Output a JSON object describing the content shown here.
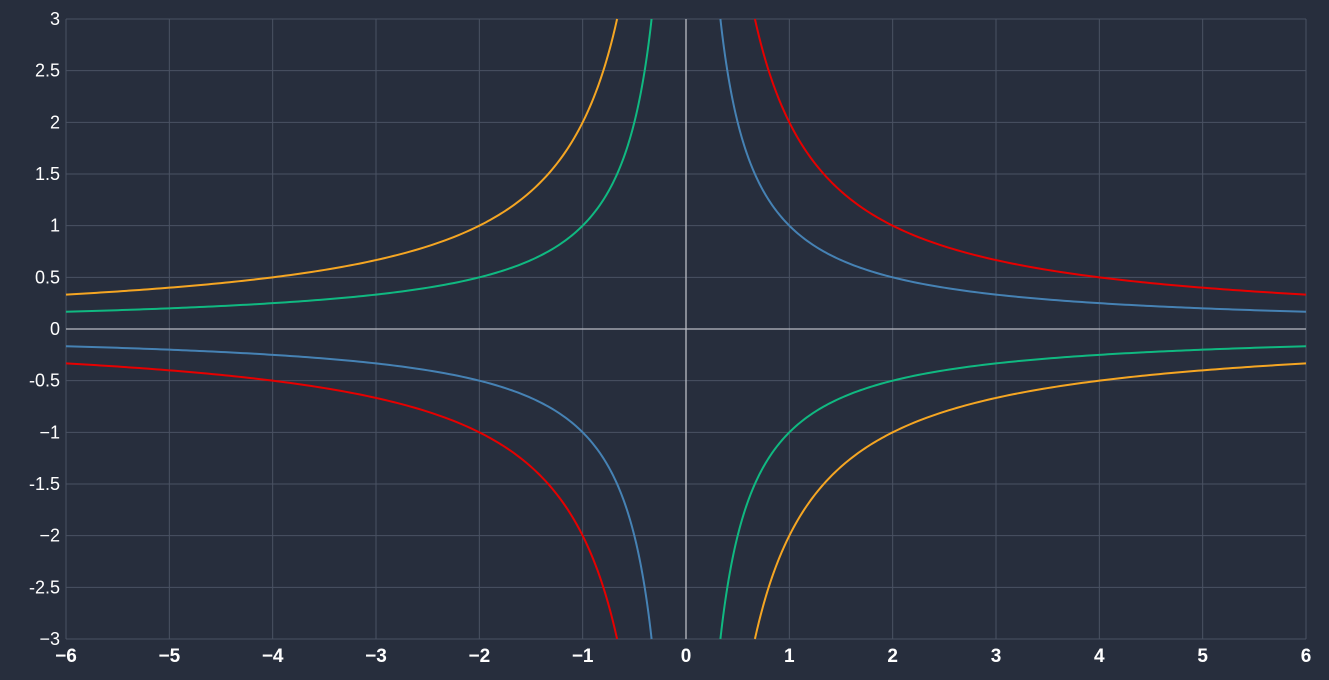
{
  "chart_data": {
    "type": "line",
    "title": "",
    "xlabel": "",
    "ylabel": "",
    "xlim": [
      -6,
      6
    ],
    "ylim": [
      -3,
      3
    ],
    "grid": true,
    "x_ticks": [
      -6,
      -5,
      -4,
      -3,
      -2,
      -1,
      0,
      1,
      2,
      3,
      4,
      5,
      6
    ],
    "x_tick_labels": [
      "−6",
      "−5",
      "−4",
      "−3",
      "−2",
      "−1",
      "0",
      "1",
      "2",
      "3",
      "4",
      "5",
      "6"
    ],
    "y_ticks": [
      3,
      2.5,
      2,
      1.5,
      1,
      0.5,
      0,
      -0.5,
      -1,
      -1.5,
      -2,
      -2.5,
      -3
    ],
    "y_tick_labels": [
      "3",
      "2.5",
      "2",
      "1.5",
      "1",
      "0.5",
      "0",
      "-0.5",
      "−1",
      "-1.5",
      "−2",
      "-2.5",
      "−3"
    ],
    "series": [
      {
        "color": "#4682b4",
        "x": [
          -6,
          -5,
          -4,
          -3,
          -2,
          -1.5,
          -1,
          -0.75,
          -0.5,
          -0.4,
          -0.333,
          0.333,
          0.4,
          0.5,
          0.75,
          1,
          1.5,
          2,
          3,
          4,
          5,
          6
        ],
        "y": [
          -0.167,
          -0.2,
          -0.25,
          -0.333,
          -0.5,
          -0.667,
          -1,
          -1.333,
          -2,
          -2.5,
          -3,
          3,
          2.5,
          2,
          1.333,
          1,
          0.667,
          0.5,
          0.333,
          0.25,
          0.2,
          0.167
        ]
      },
      {
        "color": "#e60000",
        "x": [
          -6,
          -5,
          -4,
          -3,
          -2,
          -1.5,
          -1,
          -0.8,
          -0.667,
          0.667,
          0.8,
          1,
          1.5,
          2,
          3,
          4,
          5,
          6
        ],
        "y": [
          -0.333,
          -0.4,
          -0.5,
          -0.667,
          -1,
          -1.333,
          -2,
          -2.5,
          -3,
          3,
          2.5,
          2,
          1.333,
          1,
          0.667,
          0.5,
          0.4,
          0.333
        ]
      },
      {
        "color": "#10b981",
        "x": [
          -6,
          -5,
          -4,
          -3,
          -2,
          -1.5,
          -1,
          -0.75,
          -0.5,
          -0.4,
          -0.333,
          0.333,
          0.4,
          0.5,
          0.75,
          1,
          1.5,
          2,
          3,
          4,
          5,
          6
        ],
        "y": [
          0.167,
          0.2,
          0.25,
          0.333,
          0.5,
          0.667,
          1,
          1.333,
          2,
          2.5,
          3,
          -3,
          -2.5,
          -2,
          -1.333,
          -1,
          -0.667,
          -0.5,
          -0.333,
          -0.25,
          -0.2,
          -0.167
        ]
      },
      {
        "color": "#f5a623",
        "x": [
          -6,
          -5,
          -4,
          -3,
          -2,
          -1.5,
          -1,
          -0.8,
          -0.667,
          0.667,
          0.8,
          1,
          1.5,
          2,
          3,
          4,
          5,
          6
        ],
        "y": [
          0.333,
          0.4,
          0.5,
          0.667,
          1,
          1.333,
          2,
          2.5,
          3,
          -3,
          -2.5,
          -2,
          -1.333,
          -1,
          -0.667,
          -0.5,
          -0.4,
          -0.333
        ]
      }
    ]
  }
}
